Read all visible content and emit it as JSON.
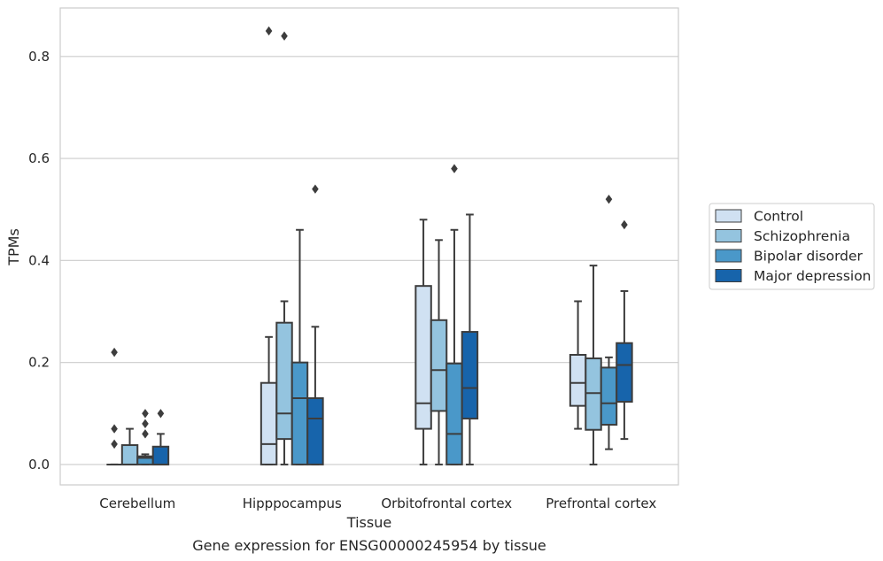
{
  "chart_data": {
    "type": "box",
    "xlabel": "Tissue",
    "ylabel": "TPMs",
    "caption": "Gene expression for ENSG00000245954 by tissue",
    "ylim": [
      -0.04,
      0.895
    ],
    "yticks": [
      "0.0",
      "0.2",
      "0.4",
      "0.6",
      "0.8"
    ],
    "grid": true,
    "legend_position": "right",
    "categories": [
      "Cerebellum",
      "Hipppocampus",
      "Orbitofrontal cortex",
      "Prefrontal cortex"
    ],
    "series": [
      {
        "name": "Control",
        "color": "#d0e1f2",
        "boxes": [
          {
            "whislo": 0.0,
            "q1": 0.0,
            "med": 0.0,
            "q3": 0.0,
            "whishi": 0.0,
            "fliers": [
              0.22,
              0.07,
              0.04
            ]
          },
          {
            "whislo": 0.0,
            "q1": 0.0,
            "med": 0.04,
            "q3": 0.16,
            "whishi": 0.25,
            "fliers": [
              0.85
            ]
          },
          {
            "whislo": 0.0,
            "q1": 0.07,
            "med": 0.12,
            "q3": 0.35,
            "whishi": 0.48,
            "fliers": []
          },
          {
            "whislo": 0.07,
            "q1": 0.115,
            "med": 0.16,
            "q3": 0.215,
            "whishi": 0.32,
            "fliers": []
          }
        ]
      },
      {
        "name": "Schizophrenia",
        "color": "#94c4df",
        "boxes": [
          {
            "whislo": 0.0,
            "q1": 0.0,
            "med": 0.0,
            "q3": 0.038,
            "whishi": 0.07,
            "fliers": []
          },
          {
            "whislo": 0.0,
            "q1": 0.05,
            "med": 0.1,
            "q3": 0.278,
            "whishi": 0.32,
            "fliers": [
              0.84
            ]
          },
          {
            "whislo": 0.0,
            "q1": 0.105,
            "med": 0.185,
            "q3": 0.283,
            "whishi": 0.44,
            "fliers": []
          },
          {
            "whislo": 0.0,
            "q1": 0.068,
            "med": 0.14,
            "q3": 0.208,
            "whishi": 0.39,
            "fliers": []
          }
        ]
      },
      {
        "name": "Bipolar disorder",
        "color": "#4a98c9",
        "boxes": [
          {
            "whislo": 0.0,
            "q1": 0.0,
            "med": 0.013,
            "q3": 0.016,
            "whishi": 0.02,
            "fliers": [
              0.1,
              0.08,
              0.06
            ]
          },
          {
            "whislo": 0.0,
            "q1": 0.0,
            "med": 0.13,
            "q3": 0.2,
            "whishi": 0.46,
            "fliers": []
          },
          {
            "whislo": 0.0,
            "q1": 0.0,
            "med": 0.06,
            "q3": 0.198,
            "whishi": 0.46,
            "fliers": [
              0.58
            ]
          },
          {
            "whislo": 0.03,
            "q1": 0.078,
            "med": 0.12,
            "q3": 0.19,
            "whishi": 0.21,
            "fliers": [
              0.52
            ]
          }
        ]
      },
      {
        "name": "Major depression",
        "color": "#1764ab",
        "boxes": [
          {
            "whislo": 0.0,
            "q1": 0.0,
            "med": 0.0,
            "q3": 0.035,
            "whishi": 0.06,
            "fliers": [
              0.1
            ]
          },
          {
            "whislo": 0.0,
            "q1": 0.0,
            "med": 0.09,
            "q3": 0.13,
            "whishi": 0.27,
            "fliers": [
              0.54
            ]
          },
          {
            "whislo": 0.0,
            "q1": 0.09,
            "med": 0.15,
            "q3": 0.26,
            "whishi": 0.49,
            "fliers": []
          },
          {
            "whislo": 0.05,
            "q1": 0.123,
            "med": 0.195,
            "q3": 0.238,
            "whishi": 0.34,
            "fliers": [
              0.47
            ]
          }
        ]
      }
    ]
  }
}
